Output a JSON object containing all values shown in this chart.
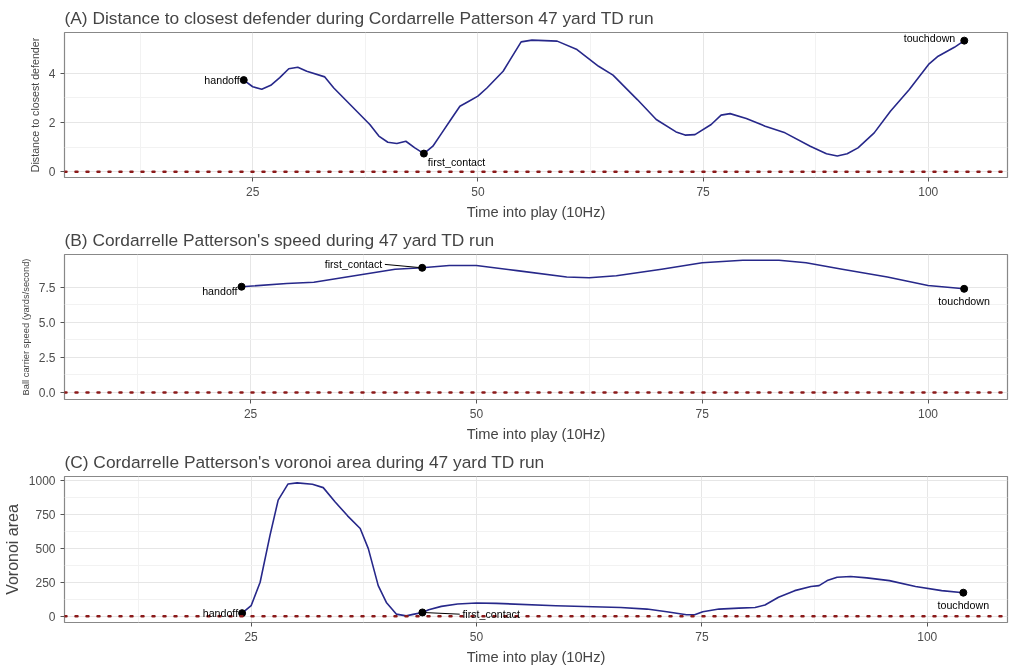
{
  "chart_data": [
    {
      "type": "line",
      "title": "(A) Distance to closest defender during Cordarrelle Patterson 47 yard TD run",
      "xlabel": "Time into play (10Hz)",
      "ylabel": "Distance to closest defender",
      "xlim": [
        4.1,
        108.8
      ],
      "ylim": [
        -0.23,
        5.65
      ],
      "xticks": [
        25,
        50,
        75,
        100
      ],
      "yticks": [
        0,
        2,
        4
      ],
      "grid": true,
      "series": [
        {
          "color": "#27288a",
          "x": [
            24,
            25,
            26,
            27,
            28,
            29,
            30,
            31,
            33,
            34,
            36,
            38,
            39,
            40,
            41,
            42,
            43,
            44,
            45,
            46,
            47,
            48,
            49,
            50,
            51,
            52.8,
            54.8,
            56.0,
            58.8,
            61.0,
            63.4,
            65.0,
            67.7,
            69.8,
            72.0,
            73.0,
            74.1,
            75.9,
            77.0,
            78.0,
            79.8,
            81.9,
            84.1,
            86.9,
            88.7,
            89.9,
            91.0,
            92.2,
            94.0,
            95.8,
            97.9,
            100.1,
            101.1,
            102.9,
            104
          ],
          "values": [
            3.72,
            3.45,
            3.35,
            3.51,
            3.82,
            4.18,
            4.24,
            4.08,
            3.85,
            3.4,
            2.66,
            1.92,
            1.45,
            1.2,
            1.15,
            1.24,
            0.97,
            0.74,
            1.04,
            1.58,
            2.12,
            2.66,
            2.86,
            3.07,
            3.4,
            4.08,
            5.27,
            5.34,
            5.3,
            4.96,
            4.28,
            3.92,
            2.93,
            2.12,
            1.62,
            1.49,
            1.51,
            1.92,
            2.3,
            2.36,
            2.16,
            1.85,
            1.58,
            1.04,
            0.73,
            0.64,
            0.73,
            0.97,
            1.58,
            2.46,
            3.34,
            4.38,
            4.69,
            5.05,
            5.32
          ]
        }
      ],
      "ref_lines": [
        {
          "axis": "y",
          "value": 0,
          "color": "#8b1a1a",
          "line_style": "dotted"
        }
      ],
      "annotations": [
        {
          "text": "handoff",
          "x": 24,
          "y": 3.72
        },
        {
          "text": "first_contact",
          "x": 44,
          "y": 0.74
        },
        {
          "text": "touchdown",
          "x": 104,
          "y": 5.32
        }
      ]
    },
    {
      "type": "line",
      "title": "(B)  Cordarrelle Patterson's speed during 47 yard TD run",
      "xlabel": "Time into play (10Hz)",
      "ylabel": "Ball carrier speed (yards/second)",
      "xlim": [
        4.4,
        108.8
      ],
      "ylim": [
        -0.5,
        9.85
      ],
      "xticks": [
        25,
        50,
        75,
        100
      ],
      "yticks": [
        {
          "value": 0,
          "label": "0.0"
        },
        {
          "value": 2.5,
          "label": "2.5"
        },
        {
          "value": 5,
          "label": "5.0"
        },
        {
          "value": 7.5,
          "label": "7.5"
        }
      ],
      "grid": true,
      "series": [
        {
          "color": "#27288a",
          "x": [
            24,
            29,
            32,
            36.5,
            41,
            44,
            47,
            50,
            54.5,
            60,
            62.5,
            65.5,
            70.5,
            75,
            79.5,
            83.5,
            86.5,
            90.5,
            95.5,
            100,
            104
          ],
          "values": [
            7.55,
            7.78,
            7.87,
            8.33,
            8.8,
            8.9,
            9.07,
            9.07,
            8.7,
            8.24,
            8.19,
            8.33,
            8.8,
            9.26,
            9.44,
            9.44,
            9.26,
            8.8,
            8.24,
            7.64,
            7.4
          ]
        }
      ],
      "ref_lines": [
        {
          "axis": "y",
          "value": 0,
          "color": "#8b1a1a",
          "line_style": "dotted"
        }
      ],
      "annotations": [
        {
          "text": "handoff",
          "x": 24,
          "y": 7.55
        },
        {
          "text": "first_contact",
          "x": 44,
          "y": 8.9
        },
        {
          "text": "touchdown",
          "x": 104,
          "y": 7.4
        }
      ]
    },
    {
      "type": "line",
      "title": "(C)    Cordarrelle Patterson's voronoi area during 47 yard TD run",
      "xlabel": "Time into play (10Hz)",
      "ylabel": "Voronoi area",
      "xlim": [
        4.3,
        108.9
      ],
      "ylim": [
        -47,
        1030
      ],
      "xticks": [
        25,
        50,
        75,
        100
      ],
      "yticks": [
        0,
        250,
        500,
        750,
        1000
      ],
      "grid": true,
      "series": [
        {
          "color": "#27288a",
          "x": [
            24,
            25,
            26,
            27.1,
            28,
            29.1,
            30.1,
            31.8,
            33,
            34.3,
            35.7,
            37.1,
            38,
            39.1,
            40,
            41.1,
            42.2,
            43.1,
            44,
            44.7,
            46.1,
            47.9,
            50,
            52.2,
            58.8,
            66.0,
            68.9,
            71.1,
            73.3,
            74.2,
            75.1,
            76.9,
            79.1,
            80.9,
            82.0,
            83.5,
            85.3,
            87.1,
            88.0,
            88.9,
            90.0,
            91.5,
            93.3,
            95.8,
            98.7,
            101.6,
            104
          ],
          "values": [
            22,
            77,
            250,
            597,
            856,
            975,
            983,
            973,
            948,
            844,
            740,
            646,
            498,
            225,
            101,
            15,
            2,
            15,
            27,
            47,
            72,
            89,
            97,
            94,
            77,
            64,
            52,
            32,
            10,
            10,
            32,
            52,
            59,
            64,
            82,
            139,
            188,
            218,
            225,
            262,
            287,
            292,
            282,
            262,
            218,
            188,
            173
          ]
        }
      ],
      "ref_lines": [
        {
          "axis": "y",
          "value": 0,
          "color": "#8b1a1a",
          "line_style": "dotted"
        }
      ],
      "annotations": [
        {
          "text": "handoff",
          "x": 24,
          "y": 22
        },
        {
          "text": "first_contact",
          "x": 44,
          "y": 27
        },
        {
          "text": "touchdown",
          "x": 104,
          "y": 173
        }
      ]
    }
  ]
}
